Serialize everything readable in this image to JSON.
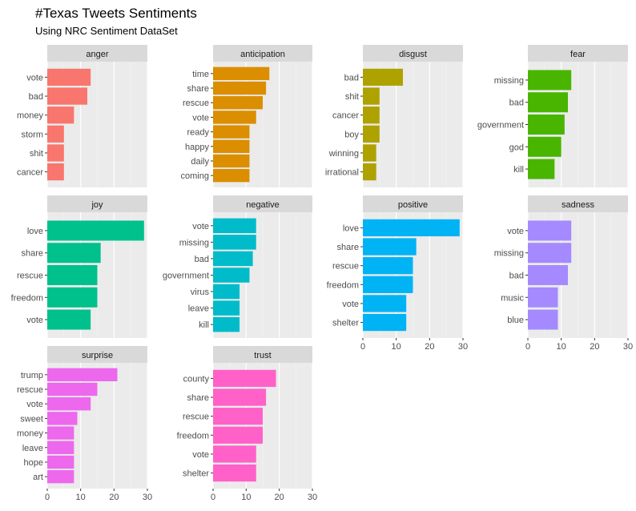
{
  "title": "#Texas Tweets Sentiments",
  "subtitle": "Using NRC Sentiment DataSet",
  "chart_data": {
    "type": "bar",
    "orientation": "horizontal",
    "facet_layout": "4 columns, independent y axes, shared x axis 0-30",
    "xlim": [
      0,
      30
    ],
    "x_ticks": [
      0,
      10,
      20,
      30
    ],
    "grid": true,
    "legend": "none",
    "panels": [
      {
        "name": "anger",
        "color": "#F8766D",
        "categories": [
          "vote",
          "bad",
          "money",
          "storm",
          "shit",
          "cancer"
        ],
        "values": [
          13,
          12,
          8,
          5,
          5,
          5
        ]
      },
      {
        "name": "anticipation",
        "color": "#DB8E00",
        "categories": [
          "time",
          "share",
          "rescue",
          "vote",
          "ready",
          "happy",
          "daily",
          "coming"
        ],
        "values": [
          17,
          16,
          15,
          13,
          11,
          11,
          11,
          11
        ]
      },
      {
        "name": "disgust",
        "color": "#AEA200",
        "categories": [
          "bad",
          "shit",
          "cancer",
          "boy",
          "winning",
          "irrational"
        ],
        "values": [
          12,
          5,
          5,
          5,
          4,
          4
        ]
      },
      {
        "name": "fear",
        "color": "#49B500",
        "categories": [
          "missing",
          "bad",
          "government",
          "god",
          "kill"
        ],
        "values": [
          13,
          12,
          11,
          10,
          8
        ]
      },
      {
        "name": "joy",
        "color": "#00C08B",
        "categories": [
          "love",
          "share",
          "rescue",
          "freedom",
          "vote"
        ],
        "values": [
          29,
          16,
          15,
          15,
          13
        ]
      },
      {
        "name": "negative",
        "color": "#00BBCA",
        "categories": [
          "vote",
          "missing",
          "bad",
          "government",
          "virus",
          "leave",
          "kill"
        ],
        "values": [
          13,
          13,
          12,
          11,
          8,
          8,
          8
        ]
      },
      {
        "name": "positive",
        "color": "#00B3F5",
        "categories": [
          "love",
          "share",
          "rescue",
          "freedom",
          "vote",
          "shelter"
        ],
        "values": [
          29,
          16,
          15,
          15,
          13,
          13
        ]
      },
      {
        "name": "sadness",
        "color": "#A58AFF",
        "categories": [
          "vote",
          "missing",
          "bad",
          "music",
          "blue"
        ],
        "values": [
          13,
          13,
          12,
          9,
          9
        ]
      },
      {
        "name": "surprise",
        "color": "#ED68ED",
        "categories": [
          "trump",
          "rescue",
          "vote",
          "sweet",
          "money",
          "leave",
          "hope",
          "art"
        ],
        "values": [
          21,
          15,
          13,
          9,
          8,
          8,
          8,
          8
        ]
      },
      {
        "name": "trust",
        "color": "#FF61C9",
        "categories": [
          "county",
          "share",
          "rescue",
          "freedom",
          "vote",
          "shelter"
        ],
        "values": [
          19,
          16,
          15,
          15,
          13,
          13
        ]
      }
    ]
  }
}
